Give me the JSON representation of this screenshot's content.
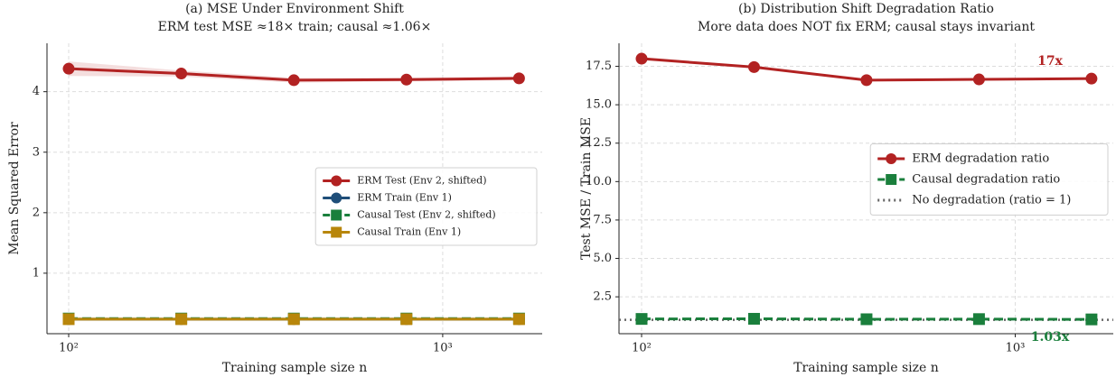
{
  "chart_data": [
    {
      "type": "line",
      "title": "(a) MSE Under Environment Shift",
      "subtitle": "ERM test MSE ≈18× train; causal ≈1.06×",
      "x_label": "Training sample size n",
      "y_label": "Mean Squared Error",
      "x": [
        100,
        200,
        400,
        800,
        1600
      ],
      "log_x": true,
      "grid": true,
      "legend": "center right",
      "xlim": [
        87.5,
        1845
      ],
      "xticks": [
        {
          "value": 100,
          "label": "10²"
        },
        {
          "value": 1000,
          "label": "10³"
        }
      ],
      "ylim": [
        0,
        4.8
      ],
      "yticks": [
        1,
        2,
        3,
        4
      ],
      "series": [
        {
          "name": "ERM Test (Env 2, shifted)",
          "color": "#b22222",
          "marker": "circle",
          "dash": "solid",
          "values": [
            4.38,
            4.3,
            4.19,
            4.2,
            4.22
          ],
          "error": [
            0.12,
            0.05,
            0.04,
            0.03,
            0.03
          ]
        },
        {
          "name": "ERM Train (Env 1)",
          "color": "#1f4e79",
          "marker": "circle",
          "dash": "solid",
          "values": [
            0.24,
            0.24,
            0.24,
            0.24,
            0.24
          ]
        },
        {
          "name": "Causal Test (Env 2, shifted)",
          "color": "#1a7f3c",
          "marker": "square",
          "dash": "dashed",
          "values": [
            0.25,
            0.25,
            0.25,
            0.25,
            0.25
          ]
        },
        {
          "name": "Causal Train (Env 1)",
          "color": "#b8860b",
          "marker": "square",
          "dash": "solid",
          "values": [
            0.24,
            0.24,
            0.24,
            0.24,
            0.24
          ]
        }
      ]
    },
    {
      "type": "line",
      "title": "(b) Distribution Shift Degradation Ratio",
      "subtitle": "More data does NOT fix ERM; causal stays invariant",
      "x_label": "Training sample size n",
      "y_label": "Test MSE / Train MSE",
      "x": [
        100,
        200,
        400,
        800,
        1600
      ],
      "log_x": true,
      "grid": true,
      "legend": "center right",
      "xlim": [
        87,
        1830
      ],
      "xticks": [
        {
          "value": 100,
          "label": "10²"
        },
        {
          "value": 1000,
          "label": "10³"
        }
      ],
      "ylim": [
        0.1,
        19
      ],
      "yticks": [
        2.5,
        {
          "value": 5,
          "label": "5.0"
        },
        7.5,
        {
          "value": 10,
          "label": "10.0"
        },
        12.5,
        {
          "value": 15,
          "label": "15.0"
        },
        17.5
      ],
      "series": [
        {
          "name": "ERM degradation ratio",
          "color": "#b22222",
          "marker": "circle",
          "dash": "solid",
          "values": [
            18.0,
            17.45,
            16.6,
            16.65,
            16.7
          ]
        },
        {
          "name": "Causal degradation ratio",
          "color": "#1a7f3c",
          "marker": "square",
          "dash": "dashed",
          "values": [
            1.06,
            1.07,
            1.04,
            1.05,
            1.03
          ]
        }
      ],
      "hline": {
        "name": "No degradation (ratio = 1)",
        "value": 1,
        "color": "#666666"
      },
      "annotations": [
        {
          "text": "17x",
          "color": "#b22222"
        },
        {
          "text": "1.03x",
          "color": "#1a7f3c"
        }
      ]
    }
  ]
}
